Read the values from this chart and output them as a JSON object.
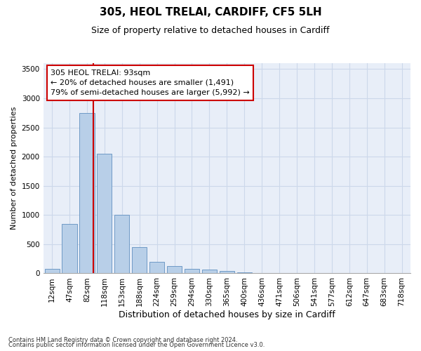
{
  "title1": "305, HEOL TRELAI, CARDIFF, CF5 5LH",
  "title2": "Size of property relative to detached houses in Cardiff",
  "xlabel": "Distribution of detached houses by size in Cardiff",
  "ylabel": "Number of detached properties",
  "categories": [
    "12sqm",
    "47sqm",
    "82sqm",
    "118sqm",
    "153sqm",
    "188sqm",
    "224sqm",
    "259sqm",
    "294sqm",
    "330sqm",
    "365sqm",
    "400sqm",
    "436sqm",
    "471sqm",
    "506sqm",
    "541sqm",
    "577sqm",
    "612sqm",
    "647sqm",
    "683sqm",
    "718sqm"
  ],
  "bar_heights": [
    80,
    850,
    2750,
    2050,
    1000,
    450,
    200,
    130,
    80,
    70,
    40,
    20,
    10,
    5,
    5,
    3,
    2,
    1,
    1,
    0,
    0
  ],
  "bar_color": "#b8cfe8",
  "bar_edge_color": "#6090c0",
  "red_line_index": 2,
  "annotation_text": "305 HEOL TRELAI: 93sqm\n← 20% of detached houses are smaller (1,491)\n79% of semi-detached houses are larger (5,992) →",
  "annotation_box_color": "#ffffff",
  "annotation_box_edge": "#cc0000",
  "ylim": [
    0,
    3600
  ],
  "yticks": [
    0,
    500,
    1000,
    1500,
    2000,
    2500,
    3000,
    3500
  ],
  "grid_color": "#ccd8ea",
  "background_color": "#e8eef8",
  "footer1": "Contains HM Land Registry data © Crown copyright and database right 2024.",
  "footer2": "Contains public sector information licensed under the Open Government Licence v3.0.",
  "title1_fontsize": 11,
  "title2_fontsize": 9,
  "tick_fontsize": 7.5,
  "ylabel_fontsize": 8,
  "xlabel_fontsize": 9,
  "annotation_fontsize": 8
}
